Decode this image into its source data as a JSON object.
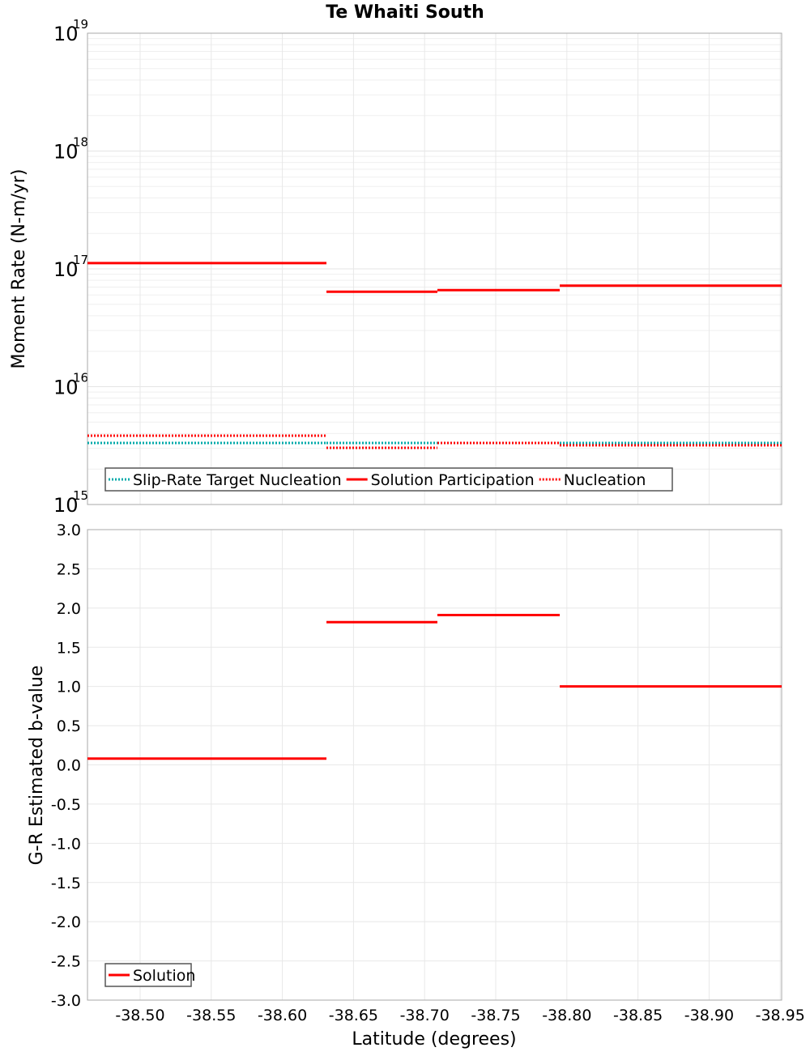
{
  "chart_data": [
    {
      "type": "line",
      "title": "Te Whaiti South",
      "xlabel": "Latitude (degrees)",
      "ylabel": "Moment Rate (N-m/yr)",
      "yscale": "log",
      "ylim": [
        1000000000000000.0,
        1e+19
      ],
      "xlim": [
        -38.463,
        -38.951
      ],
      "ytick_labels": [
        {
          "base": "10",
          "exp": "15",
          "v": 15
        },
        {
          "base": "10",
          "exp": "16",
          "v": 16
        },
        {
          "base": "10",
          "exp": "17",
          "v": 17
        },
        {
          "base": "10",
          "exp": "18",
          "v": 18
        },
        {
          "base": "10",
          "exp": "19",
          "v": 19
        }
      ],
      "grid": true,
      "legend_position": "bottom-left",
      "series": [
        {
          "name": "Slip-Rate Target Nucleation",
          "color": "#00aaaa",
          "style": "dotted",
          "segments": [
            [
              -38.463,
              -38.631,
              3330000000000000.0
            ],
            [
              -38.631,
              -38.709,
              3330000000000000.0
            ],
            [
              -38.709,
              -38.795,
              3330000000000000.0
            ],
            [
              -38.795,
              -38.951,
              3330000000000000.0
            ]
          ]
        },
        {
          "name": "Solution Participation",
          "color": "#ff0000",
          "style": "solid",
          "segments": [
            [
              -38.463,
              -38.631,
              1.12e+17
            ],
            [
              -38.631,
              -38.709,
              6.4e+16
            ],
            [
              -38.709,
              -38.795,
              6.6e+16
            ],
            [
              -38.795,
              -38.951,
              7.2e+16
            ]
          ]
        },
        {
          "name": "Nucleation",
          "color": "#ff0000",
          "style": "dotted",
          "segments": [
            [
              -38.463,
              -38.631,
              3840000000000000.0
            ],
            [
              -38.631,
              -38.709,
              3030000000000000.0
            ],
            [
              -38.709,
              -38.795,
              3330000000000000.0
            ],
            [
              -38.795,
              -38.951,
              3180000000000000.0
            ]
          ]
        }
      ]
    },
    {
      "type": "line",
      "xlabel": "Latitude (degrees)",
      "ylabel": "G-R Estimated b-value",
      "ylim": [
        -3.0,
        3.0
      ],
      "xlim": [
        -38.463,
        -38.951
      ],
      "yticks": [
        "3.0",
        "2.5",
        "2.0",
        "1.5",
        "1.0",
        "0.5",
        "0.0",
        "-0.5",
        "-1.0",
        "-1.5",
        "-2.0",
        "-2.5",
        "-3.0"
      ],
      "xticks": [
        "-38.50",
        "-38.55",
        "-38.60",
        "-38.65",
        "-38.70",
        "-38.75",
        "-38.80",
        "-38.85",
        "-38.90",
        "-38.95"
      ],
      "grid": true,
      "legend_position": "bottom-left",
      "series": [
        {
          "name": "Solution",
          "color": "#ff0000",
          "style": "solid",
          "segments": [
            [
              -38.463,
              -38.631,
              0.08
            ],
            [
              -38.631,
              -38.709,
              1.82
            ],
            [
              -38.709,
              -38.795,
              1.91
            ],
            [
              -38.795,
              -38.951,
              1.0
            ]
          ]
        }
      ]
    }
  ]
}
